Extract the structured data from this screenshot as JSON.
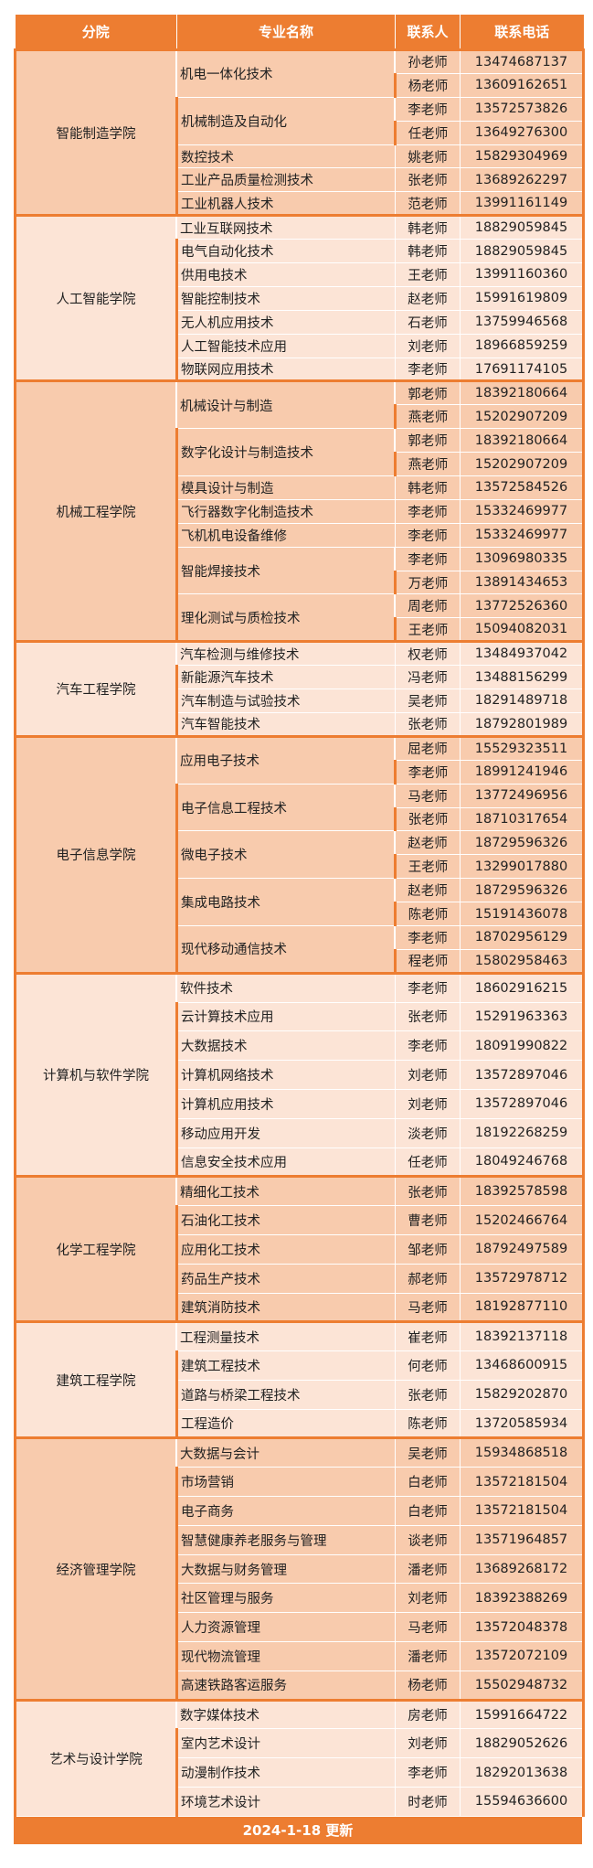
{
  "header": {
    "college": "分院",
    "major": "专业名称",
    "contact": "联系人",
    "phone": "联系电话"
  },
  "colors": {
    "accent": "#ED7D31",
    "band_dark": "#F8CBAD",
    "band_light": "#FCE4D6"
  },
  "sections": [
    {
      "name": "智能制造学院",
      "majors": [
        {
          "name": "机电一体化技术",
          "contacts": [
            {
              "person": "孙老师",
              "phone": "13474687137"
            },
            {
              "person": "杨老师",
              "phone": "13609162651"
            }
          ]
        },
        {
          "name": "机械制造及自动化",
          "contacts": [
            {
              "person": "李老师",
              "phone": "13572573826"
            },
            {
              "person": "任老师",
              "phone": "13649276300"
            }
          ]
        },
        {
          "name": "数控技术",
          "contacts": [
            {
              "person": "姚老师",
              "phone": "15829304969"
            }
          ]
        },
        {
          "name": "工业产品质量检测技术",
          "contacts": [
            {
              "person": "张老师",
              "phone": "13689262297"
            }
          ]
        },
        {
          "name": "工业机器人技术",
          "contacts": [
            {
              "person": "范老师",
              "phone": "13991161149"
            }
          ]
        }
      ]
    },
    {
      "name": "人工智能学院",
      "majors": [
        {
          "name": "工业互联网技术",
          "contacts": [
            {
              "person": "韩老师",
              "phone": "18829059845"
            }
          ]
        },
        {
          "name": "电气自动化技术",
          "contacts": [
            {
              "person": "韩老师",
              "phone": "18829059845"
            }
          ]
        },
        {
          "name": "供用电技术",
          "contacts": [
            {
              "person": "王老师",
              "phone": "13991160360"
            }
          ]
        },
        {
          "name": "智能控制技术",
          "contacts": [
            {
              "person": "赵老师",
              "phone": "15991619809"
            }
          ]
        },
        {
          "name": "无人机应用技术",
          "contacts": [
            {
              "person": "石老师",
              "phone": "13759946568"
            }
          ]
        },
        {
          "name": "人工智能技术应用",
          "contacts": [
            {
              "person": "刘老师",
              "phone": "18966859259"
            }
          ]
        },
        {
          "name": "物联网应用技术",
          "contacts": [
            {
              "person": "李老师",
              "phone": "17691174105"
            }
          ]
        }
      ]
    },
    {
      "name": "机械工程学院",
      "majors": [
        {
          "name": "机械设计与制造",
          "contacts": [
            {
              "person": "郭老师",
              "phone": "18392180664"
            },
            {
              "person": "燕老师",
              "phone": "15202907209"
            }
          ]
        },
        {
          "name": "数字化设计与制造技术",
          "contacts": [
            {
              "person": "郭老师",
              "phone": "18392180664"
            },
            {
              "person": "燕老师",
              "phone": "15202907209"
            }
          ]
        },
        {
          "name": "模具设计与制造",
          "contacts": [
            {
              "person": "韩老师",
              "phone": "13572584526"
            }
          ]
        },
        {
          "name": "飞行器数字化制造技术",
          "contacts": [
            {
              "person": "李老师",
              "phone": "15332469977"
            }
          ]
        },
        {
          "name": "飞机机电设备维修",
          "contacts": [
            {
              "person": "李老师",
              "phone": "15332469977"
            }
          ]
        },
        {
          "name": "智能焊接技术",
          "contacts": [
            {
              "person": "李老师",
              "phone": "13096980335"
            },
            {
              "person": "万老师",
              "phone": "13891434653"
            }
          ]
        },
        {
          "name": "理化测试与质检技术",
          "contacts": [
            {
              "person": "周老师",
              "phone": "13772526360"
            },
            {
              "person": "王老师",
              "phone": "15094082031"
            }
          ]
        }
      ]
    },
    {
      "name": "汽车工程学院",
      "majors": [
        {
          "name": "汽车检测与维修技术",
          "contacts": [
            {
              "person": "权老师",
              "phone": "13484937042"
            }
          ]
        },
        {
          "name": "新能源汽车技术",
          "contacts": [
            {
              "person": "冯老师",
              "phone": "13488156299"
            }
          ]
        },
        {
          "name": "汽车制造与试验技术",
          "contacts": [
            {
              "person": "吴老师",
              "phone": "18291489718"
            }
          ]
        },
        {
          "name": "汽车智能技术",
          "contacts": [
            {
              "person": "张老师",
              "phone": "18792801989"
            }
          ]
        }
      ]
    },
    {
      "name": "电子信息学院",
      "majors": [
        {
          "name": "应用电子技术",
          "contacts": [
            {
              "person": "屈老师",
              "phone": "15529323511"
            },
            {
              "person": "李老师",
              "phone": "18991241946"
            }
          ]
        },
        {
          "name": "电子信息工程技术",
          "contacts": [
            {
              "person": "马老师",
              "phone": "13772496956"
            },
            {
              "person": "张老师",
              "phone": "18710317654"
            }
          ]
        },
        {
          "name": "微电子技术",
          "contacts": [
            {
              "person": "赵老师",
              "phone": "18729596326"
            },
            {
              "person": "王老师",
              "phone": "13299017880"
            }
          ]
        },
        {
          "name": "集成电路技术",
          "contacts": [
            {
              "person": "赵老师",
              "phone": "18729596326"
            },
            {
              "person": "陈老师",
              "phone": "15191436078"
            }
          ]
        },
        {
          "name": "现代移动通信技术",
          "contacts": [
            {
              "person": "李老师",
              "phone": "18702956129"
            },
            {
              "person": "程老师",
              "phone": "15802958463"
            }
          ]
        }
      ]
    },
    {
      "name": "计算机与软件学院",
      "majors": [
        {
          "name": "软件技术",
          "contacts": [
            {
              "person": "李老师",
              "phone": "18602916215"
            }
          ]
        },
        {
          "name": "云计算技术应用",
          "contacts": [
            {
              "person": "张老师",
              "phone": "15291963363"
            }
          ]
        },
        {
          "name": "大数据技术",
          "contacts": [
            {
              "person": "李老师",
              "phone": "18091990822"
            }
          ]
        },
        {
          "name": "计算机网络技术",
          "contacts": [
            {
              "person": "刘老师",
              "phone": "13572897046"
            }
          ]
        },
        {
          "name": "计算机应用技术",
          "contacts": [
            {
              "person": "刘老师",
              "phone": "13572897046"
            }
          ]
        },
        {
          "name": "移动应用开发",
          "contacts": [
            {
              "person": "淡老师",
              "phone": "18192268259"
            }
          ]
        },
        {
          "name": "信息安全技术应用",
          "contacts": [
            {
              "person": "任老师",
              "phone": "18049246768"
            }
          ]
        }
      ]
    },
    {
      "name": "化学工程学院",
      "majors": [
        {
          "name": "精细化工技术",
          "contacts": [
            {
              "person": "张老师",
              "phone": "18392578598"
            }
          ]
        },
        {
          "name": "石油化工技术",
          "contacts": [
            {
              "person": "曹老师",
              "phone": "15202466764"
            }
          ]
        },
        {
          "name": "应用化工技术",
          "contacts": [
            {
              "person": "邹老师",
              "phone": "18792497589"
            }
          ]
        },
        {
          "name": "药品生产技术",
          "contacts": [
            {
              "person": "郝老师",
              "phone": "13572978712"
            }
          ]
        },
        {
          "name": "建筑消防技术",
          "contacts": [
            {
              "person": "马老师",
              "phone": "18192877110"
            }
          ]
        }
      ]
    },
    {
      "name": "建筑工程学院",
      "majors": [
        {
          "name": "工程测量技术",
          "contacts": [
            {
              "person": "崔老师",
              "phone": "18392137118"
            }
          ]
        },
        {
          "name": "建筑工程技术",
          "contacts": [
            {
              "person": "何老师",
              "phone": "13468600915"
            }
          ]
        },
        {
          "name": "道路与桥梁工程技术",
          "contacts": [
            {
              "person": "张老师",
              "phone": "15829202870"
            }
          ]
        },
        {
          "name": "工程造价",
          "contacts": [
            {
              "person": "陈老师",
              "phone": "13720585934"
            }
          ]
        }
      ]
    },
    {
      "name": "经济管理学院",
      "majors": [
        {
          "name": "大数据与会计",
          "contacts": [
            {
              "person": "吴老师",
              "phone": "15934868518"
            }
          ]
        },
        {
          "name": "市场营销",
          "contacts": [
            {
              "person": "白老师",
              "phone": "13572181504"
            }
          ]
        },
        {
          "name": "电子商务",
          "contacts": [
            {
              "person": "白老师",
              "phone": "13572181504"
            }
          ]
        },
        {
          "name": "智慧健康养老服务与管理",
          "contacts": [
            {
              "person": "谈老师",
              "phone": "13571964857"
            }
          ]
        },
        {
          "name": "大数据与财务管理",
          "contacts": [
            {
              "person": "潘老师",
              "phone": "13689268172"
            }
          ]
        },
        {
          "name": "社区管理与服务",
          "contacts": [
            {
              "person": "刘老师",
              "phone": "18392388269"
            }
          ]
        },
        {
          "name": "人力资源管理",
          "contacts": [
            {
              "person": "马老师",
              "phone": "13572048378"
            }
          ]
        },
        {
          "name": "现代物流管理",
          "contacts": [
            {
              "person": "潘老师",
              "phone": "13572072109"
            }
          ]
        },
        {
          "name": "高速铁路客运服务",
          "contacts": [
            {
              "person": "杨老师",
              "phone": "15502948732"
            }
          ]
        }
      ]
    },
    {
      "name": "艺术与设计学院",
      "majors": [
        {
          "name": "数字媒体技术",
          "contacts": [
            {
              "person": "房老师",
              "phone": "15991664722"
            }
          ]
        },
        {
          "name": "室内艺术设计",
          "contacts": [
            {
              "person": "刘老师",
              "phone": "18829052626"
            }
          ]
        },
        {
          "name": "动漫制作技术",
          "contacts": [
            {
              "person": "李老师",
              "phone": "18292013638"
            }
          ]
        },
        {
          "name": "环境艺术设计",
          "contacts": [
            {
              "person": "时老师",
              "phone": "15594636600"
            }
          ]
        }
      ]
    }
  ],
  "footer": {
    "updated": "2024-1-18  更新"
  }
}
